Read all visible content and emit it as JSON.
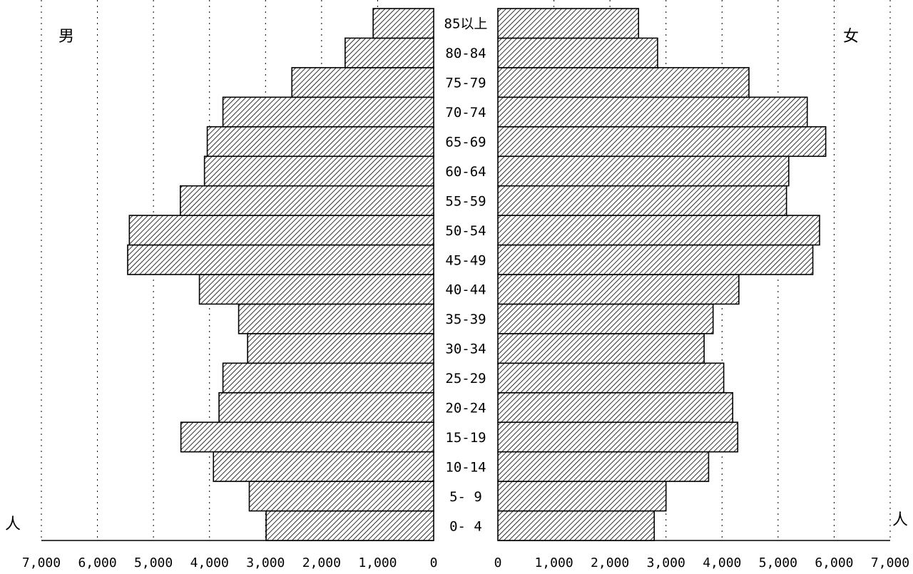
{
  "chart_data": {
    "type": "bar",
    "subtype": "population-pyramid",
    "categories": [
      "0- 4",
      "5- 9",
      "10-14",
      "15-19",
      "20-24",
      "25-29",
      "30-34",
      "35-39",
      "40-44",
      "45-49",
      "50-54",
      "55-59",
      "60-64",
      "65-69",
      "70-74",
      "75-79",
      "80-84",
      "85以上"
    ],
    "series": [
      {
        "name": "男",
        "side": "left",
        "values": [
          2990,
          3290,
          3930,
          4510,
          3830,
          3760,
          3320,
          3480,
          4180,
          5460,
          5430,
          4520,
          4090,
          4040,
          3760,
          2530,
          1580,
          1080
        ]
      },
      {
        "name": "女",
        "side": "right",
        "values": [
          2790,
          3000,
          3760,
          4280,
          4190,
          4030,
          3680,
          3840,
          4300,
          5620,
          5740,
          5150,
          5190,
          5850,
          5520,
          4480,
          2850,
          2510
        ]
      }
    ],
    "left_ticks": [
      "7,000",
      "6,000",
      "5,000",
      "4,000",
      "3,000",
      "2,000",
      "1,000",
      "0"
    ],
    "right_ticks": [
      "0",
      "1,000",
      "2,000",
      "3,000",
      "4,000",
      "5,000",
      "6,000",
      "7,000"
    ],
    "unit_left": "人",
    "unit_right": "人",
    "xlim": [
      0,
      7000
    ],
    "grid": true,
    "bar_fill": "diagonal-hatch",
    "colors": {
      "bar_stroke": "#000000",
      "hatch": "#000000",
      "grid": "#000000",
      "background": "#ffffff"
    }
  }
}
